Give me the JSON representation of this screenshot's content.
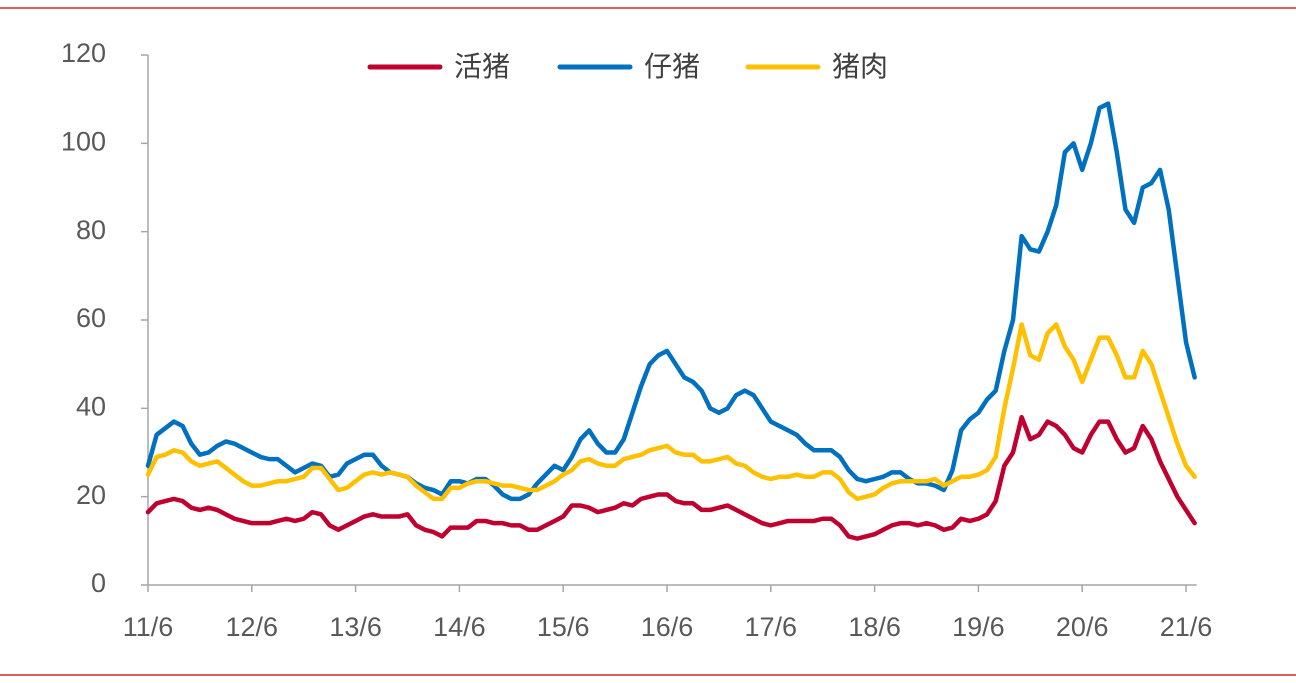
{
  "chart_data": {
    "type": "line",
    "categories": [
      "11/6",
      null,
      null,
      null,
      null,
      null,
      null,
      null,
      null,
      null,
      null,
      null,
      "12/6",
      null,
      null,
      null,
      null,
      null,
      null,
      null,
      null,
      null,
      null,
      null,
      "13/6",
      null,
      null,
      null,
      null,
      null,
      null,
      null,
      null,
      null,
      null,
      null,
      "14/6",
      null,
      null,
      null,
      null,
      null,
      null,
      null,
      null,
      null,
      null,
      null,
      "15/6",
      null,
      null,
      null,
      null,
      null,
      null,
      null,
      null,
      null,
      null,
      null,
      "16/6",
      null,
      null,
      null,
      null,
      null,
      null,
      null,
      null,
      null,
      null,
      null,
      "17/6",
      null,
      null,
      null,
      null,
      null,
      null,
      null,
      null,
      null,
      null,
      null,
      "18/6",
      null,
      null,
      null,
      null,
      null,
      null,
      null,
      null,
      null,
      null,
      null,
      "19/6",
      null,
      null,
      null,
      null,
      null,
      null,
      null,
      null,
      null,
      null,
      null,
      "20/6",
      null,
      null,
      null,
      null,
      null,
      null,
      null,
      null,
      null,
      null,
      null,
      "21/6",
      null
    ],
    "series": [
      {
        "name": "活猪",
        "color": "#c0002f",
        "values": [
          16.5,
          18.5,
          19,
          19.5,
          19,
          17.5,
          17,
          17.5,
          17,
          16,
          15,
          14.5,
          14,
          14,
          14,
          14.5,
          15,
          14.5,
          15,
          16.5,
          16,
          13.5,
          12.5,
          13.5,
          14.5,
          15.5,
          16,
          15.5,
          15.5,
          15.5,
          16,
          13.5,
          12.5,
          12,
          11,
          13,
          13,
          13,
          14.5,
          14.5,
          14,
          14,
          13.5,
          13.5,
          12.5,
          12.5,
          13.5,
          14.5,
          15.5,
          18,
          18,
          17.5,
          16.5,
          17,
          17.5,
          18.5,
          18,
          19.5,
          20,
          20.5,
          20.5,
          19,
          18.5,
          18.5,
          17,
          17,
          17.5,
          18,
          17,
          16,
          15,
          14,
          13.5,
          14,
          14.5,
          14.5,
          14.5,
          14.5,
          15,
          15,
          13.5,
          11,
          10.5,
          11,
          11.5,
          12.5,
          13.5,
          14,
          14,
          13.5,
          14,
          13.5,
          12.5,
          13,
          15,
          14.5,
          15,
          16,
          19,
          27,
          30,
          38,
          33,
          34,
          37,
          36,
          34,
          31,
          30,
          34,
          37,
          37,
          33,
          30,
          31,
          36,
          33,
          28,
          24,
          20,
          17,
          14
        ]
      },
      {
        "name": "仔猪",
        "color": "#0070c0",
        "values": [
          27,
          34,
          35.5,
          37,
          36,
          32,
          29.5,
          30,
          31.5,
          32.5,
          32,
          31,
          30,
          29,
          28.5,
          28.5,
          27,
          25.5,
          26.5,
          27.5,
          27,
          24.5,
          25,
          27.5,
          28.5,
          29.5,
          29.5,
          27,
          25.5,
          25,
          24.5,
          23,
          22,
          21.5,
          20.5,
          23.5,
          23.5,
          23,
          24,
          24,
          22.5,
          20.5,
          19.5,
          19.5,
          20.5,
          23,
          25,
          27,
          26,
          29,
          33,
          35,
          32,
          30,
          30,
          33,
          39,
          45,
          50,
          52,
          53,
          50,
          47,
          46,
          44,
          40,
          39,
          40,
          43,
          44,
          43,
          40,
          37,
          36,
          35,
          34,
          32,
          30.5,
          30.5,
          30.5,
          29,
          26,
          24,
          23.5,
          24,
          24.5,
          25.5,
          25.5,
          24,
          23,
          23,
          22.5,
          21.5,
          26,
          35,
          37.5,
          39,
          42,
          44,
          53,
          60,
          79,
          76,
          75.5,
          80,
          86,
          98,
          100,
          94,
          100,
          108,
          109,
          98,
          85,
          82,
          90,
          91,
          94,
          85,
          70,
          55,
          47
        ]
      },
      {
        "name": "猪肉",
        "color": "#ffc000",
        "values": [
          25,
          29,
          29.5,
          30.5,
          30,
          28,
          27,
          27.5,
          28,
          26.5,
          25,
          23.5,
          22.5,
          22.5,
          23,
          23.5,
          23.5,
          24,
          24.5,
          26.5,
          26.5,
          24,
          21.5,
          22,
          23.5,
          25,
          25.5,
          25,
          25.5,
          25,
          24.5,
          22.5,
          21,
          19.5,
          19.5,
          22,
          22,
          23,
          23.5,
          23.5,
          23,
          22.5,
          22.5,
          22,
          21.5,
          21.5,
          22.5,
          23.5,
          25,
          26,
          28,
          28.5,
          27.5,
          27,
          27,
          28.5,
          29,
          29.5,
          30.5,
          31,
          31.5,
          30,
          29.5,
          29.5,
          28,
          28,
          28.5,
          29,
          27.5,
          27,
          25.5,
          24.5,
          24,
          24.5,
          24.5,
          25,
          24.5,
          24.5,
          25.5,
          25.5,
          24,
          21,
          19.5,
          20,
          20.5,
          22,
          23,
          23.5,
          23.5,
          23.5,
          23.5,
          24,
          22.5,
          23.5,
          24.5,
          24.5,
          25,
          26,
          29,
          40,
          49,
          59,
          52,
          51,
          57,
          59,
          54,
          51,
          46,
          51,
          56,
          56,
          52,
          47,
          47,
          53,
          50,
          44,
          38,
          32,
          27,
          24.5
        ]
      }
    ],
    "ylim": [
      0,
      120
    ],
    "yticks": [
      0,
      20,
      40,
      60,
      80,
      100,
      120
    ],
    "grid": false,
    "legend": "top"
  }
}
